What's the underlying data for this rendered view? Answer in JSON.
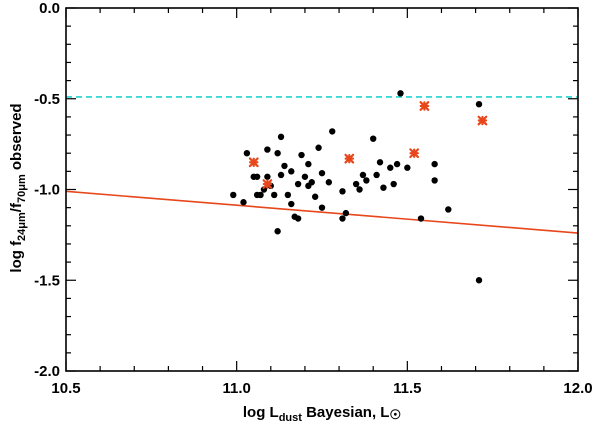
{
  "chart_data": {
    "type": "scatter",
    "title": "",
    "xlabel": {
      "prefix": "log L",
      "subscript": "dust",
      "middle": " Bayesian,  L",
      "symbol": "☉"
    },
    "ylabel": {
      "prefix": "log f",
      "sub1": "24μm",
      "slash": "/f",
      "sub2": "70μm",
      "suffix": " observed"
    },
    "xlim": [
      10.5,
      12.0
    ],
    "ylim": [
      -2.0,
      0.0
    ],
    "x_ticks": [
      10.5,
      11.0,
      11.5,
      12.0
    ],
    "x_tick_labels": [
      "10.5",
      "11.0",
      "11.5",
      "12.0"
    ],
    "y_ticks": [
      0.0,
      -0.5,
      -1.0,
      -1.5,
      -2.0
    ],
    "y_tick_labels": [
      "0.0",
      "-0.5",
      "-1.0",
      "-1.5",
      "-2.0"
    ],
    "x_minor_step": 0.1,
    "y_minor_step": 0.1,
    "colors": {
      "points": "#000000",
      "highlight": "#e8461b",
      "fit_line": "#e8461b",
      "threshold_line": "#22d3d3",
      "axes": "#000000"
    },
    "series": [
      {
        "name": "sources",
        "marker": "filled-circle",
        "points": [
          [
            10.99,
            -1.03
          ],
          [
            11.02,
            -1.07
          ],
          [
            11.03,
            -0.8
          ],
          [
            11.05,
            -0.93
          ],
          [
            11.06,
            -1.03
          ],
          [
            11.07,
            -1.03
          ],
          [
            11.08,
            -1.0
          ],
          [
            11.09,
            -0.78
          ],
          [
            11.09,
            -0.93
          ],
          [
            11.1,
            -0.98
          ],
          [
            11.11,
            -1.03
          ],
          [
            11.12,
            -0.8
          ],
          [
            11.13,
            -0.71
          ],
          [
            11.13,
            -0.92
          ],
          [
            11.14,
            -0.87
          ],
          [
            11.15,
            -1.03
          ],
          [
            11.16,
            -0.9
          ],
          [
            11.16,
            -1.08
          ],
          [
            11.17,
            -1.15
          ],
          [
            11.18,
            -0.97
          ],
          [
            11.18,
            -1.16
          ],
          [
            11.19,
            -0.81
          ],
          [
            11.2,
            -0.93
          ],
          [
            11.21,
            -0.86
          ],
          [
            11.21,
            -0.98
          ],
          [
            11.22,
            -0.96
          ],
          [
            11.23,
            -1.04
          ],
          [
            11.24,
            -0.77
          ],
          [
            11.25,
            -0.91
          ],
          [
            11.25,
            -1.1
          ],
          [
            11.27,
            -0.96
          ],
          [
            11.28,
            -0.68
          ],
          [
            11.31,
            -1.01
          ],
          [
            11.31,
            -1.16
          ],
          [
            11.32,
            -1.13
          ],
          [
            11.35,
            -0.97
          ],
          [
            11.36,
            -1.0
          ],
          [
            11.37,
            -0.92
          ],
          [
            11.38,
            -0.95
          ],
          [
            11.4,
            -0.72
          ],
          [
            11.41,
            -0.92
          ],
          [
            11.42,
            -0.85
          ],
          [
            11.43,
            -0.99
          ],
          [
            11.45,
            -0.88
          ],
          [
            11.46,
            -0.97
          ],
          [
            11.47,
            -0.86
          ],
          [
            11.48,
            -0.47
          ],
          [
            11.5,
            -0.88
          ],
          [
            11.54,
            -1.16
          ],
          [
            11.58,
            -0.86
          ],
          [
            11.58,
            -0.95
          ],
          [
            11.62,
            -1.11
          ],
          [
            11.71,
            -0.53
          ],
          [
            11.71,
            -1.5
          ],
          [
            11.06,
            -0.93
          ],
          [
            11.12,
            -1.23
          ]
        ]
      },
      {
        "name": "highlighted",
        "marker": "orange-asterisk",
        "points": [
          [
            11.05,
            -0.85
          ],
          [
            11.09,
            -0.97
          ],
          [
            11.33,
            -0.83
          ],
          [
            11.52,
            -0.8
          ],
          [
            11.55,
            -0.54
          ],
          [
            11.72,
            -0.62
          ]
        ]
      }
    ],
    "lines": [
      {
        "name": "fit",
        "style": "solid",
        "points": [
          [
            10.5,
            -1.01
          ],
          [
            12.0,
            -1.24
          ]
        ]
      },
      {
        "name": "threshold",
        "style": "dashed",
        "points": [
          [
            10.5,
            -0.49
          ],
          [
            12.0,
            -0.49
          ]
        ]
      }
    ]
  }
}
